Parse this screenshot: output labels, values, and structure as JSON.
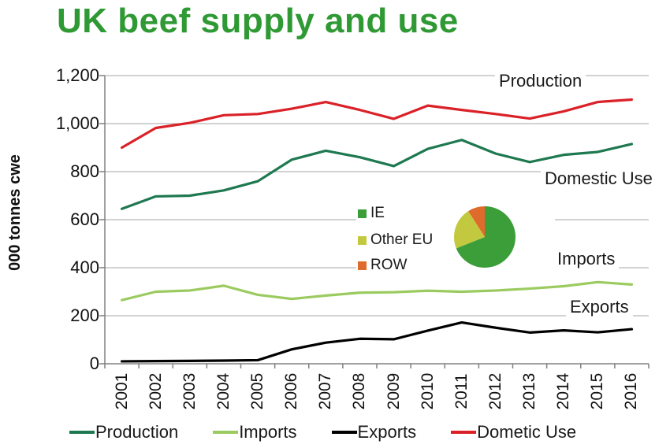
{
  "title": "UK beef supply and use",
  "colors": {
    "title_green": "#2F9934",
    "gridline": "#A6A6A6",
    "axis": "#808080",
    "production_teal": "#1E7850",
    "imports_green": "#9BCB60",
    "exports_black": "#000000",
    "domestic_use_red": "#DB2128"
  },
  "chart_data": {
    "type": "line",
    "title": "UK beef supply and use",
    "xlabel": "",
    "ylabel": "000 tonnes cwe",
    "ylim": [
      0,
      1200
    ],
    "ytick_interval": 200,
    "ytick_labels": [
      "0",
      "200",
      "400",
      "600",
      "800",
      "1,000",
      "1,200"
    ],
    "grid": true,
    "legend_position": "bottom",
    "x": [
      "2001",
      "2002",
      "2003",
      "2004",
      "2005",
      "2006",
      "2007",
      "2008",
      "2009",
      "2010",
      "2011",
      "2012",
      "2013",
      "2014",
      "2015",
      "2016"
    ],
    "series": [
      {
        "name": "Production",
        "color": "#1E7850",
        "values": [
          645,
          697,
          700,
          722,
          760,
          850,
          887,
          860,
          823,
          895,
          932,
          875,
          840,
          870,
          882,
          915
        ]
      },
      {
        "name": "Imports",
        "color": "#9BCB60",
        "values": [
          265,
          300,
          305,
          325,
          287,
          270,
          284,
          296,
          298,
          304,
          300,
          305,
          313,
          323,
          340,
          330
        ]
      },
      {
        "name": "Exports",
        "color": "#000000",
        "values": [
          10,
          11,
          12,
          13,
          15,
          60,
          88,
          104,
          102,
          138,
          172,
          150,
          130,
          139,
          131,
          144
        ]
      },
      {
        "name": "Dometic Use",
        "color": "#DB2128",
        "values": [
          900,
          982,
          1003,
          1035,
          1040,
          1062,
          1090,
          1057,
          1020,
          1075,
          1057,
          1040,
          1021,
          1051,
          1090,
          1100
        ]
      }
    ],
    "annotations": [
      {
        "text": "Production"
      },
      {
        "text": "Domestic Use"
      },
      {
        "text": "Imports"
      },
      {
        "text": "Exports"
      }
    ],
    "inset_pie": {
      "type": "pie",
      "labels": [
        "IE",
        "Other EU",
        "ROW"
      ],
      "values": [
        69,
        22,
        9
      ],
      "colors": [
        "#3C9E39",
        "#C2C93E",
        "#DE6A2C"
      ]
    }
  },
  "legend": {
    "items": [
      {
        "label": "Production",
        "color": "#1E7850"
      },
      {
        "label": "Imports",
        "color": "#9BCB60"
      },
      {
        "label": "Exports",
        "color": "#000000"
      },
      {
        "label": "Dometic Use",
        "color": "#DB2128"
      }
    ]
  }
}
